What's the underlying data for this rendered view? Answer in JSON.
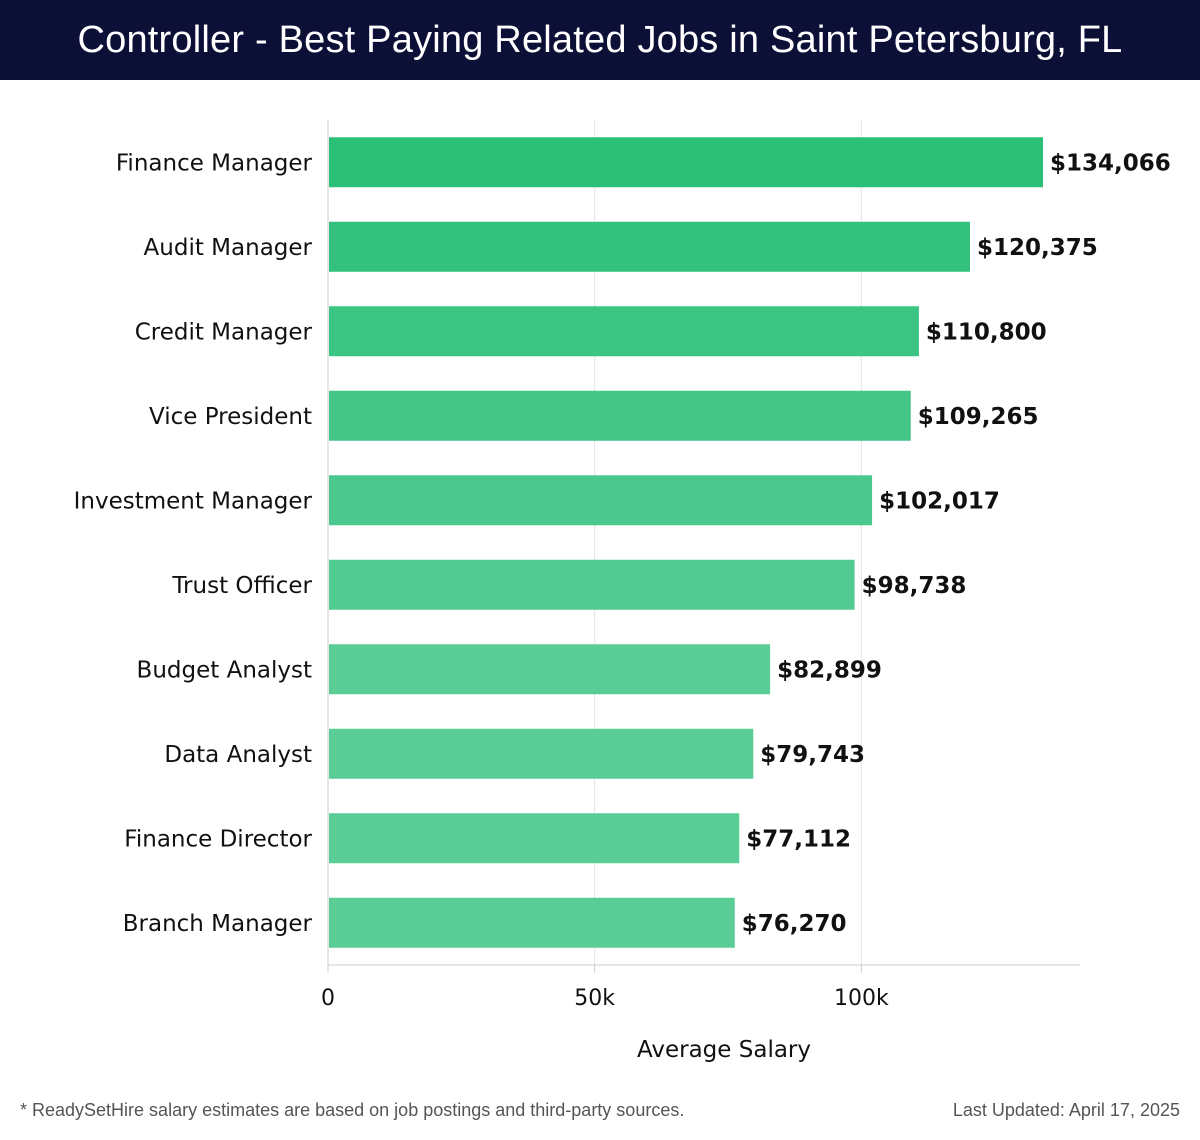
{
  "header": {
    "title": "Controller - Best Paying Related Jobs in Saint Petersburg, FL"
  },
  "footer": {
    "note": "* ReadySetHire salary estimates are based on job postings and third-party sources.",
    "updated": "Last Updated: April 17, 2025"
  },
  "colors": {
    "header_bg": "#0c0f36",
    "bar_top": "#2bbf78",
    "bar_bottom": "#5acd97",
    "grid": "#e3e3e3",
    "axis": "#cccccc"
  },
  "chart_data": {
    "type": "bar",
    "orientation": "horizontal",
    "title": "Controller - Best Paying Related Jobs in Saint Petersburg, FL",
    "xlabel": "Average Salary",
    "ylabel": "",
    "xlim": [
      0,
      141000
    ],
    "grid": true,
    "categories": [
      "Finance Manager",
      "Audit Manager",
      "Credit Manager",
      "Vice President",
      "Investment Manager",
      "Trust Officer",
      "Budget Analyst",
      "Data Analyst",
      "Finance Director",
      "Branch Manager"
    ],
    "values": [
      134066,
      120375,
      110800,
      109265,
      102017,
      98738,
      82899,
      79743,
      77112,
      76270
    ],
    "value_labels": [
      "$134,066",
      "$120,375",
      "$110,800",
      "$109,265",
      "$102,017",
      "$98,738",
      "$82,899",
      "$79,743",
      "$77,112",
      "$76,270"
    ],
    "x_ticks": [
      0,
      50000,
      100000
    ],
    "x_tick_labels": [
      "0",
      "50k",
      "100k"
    ]
  }
}
